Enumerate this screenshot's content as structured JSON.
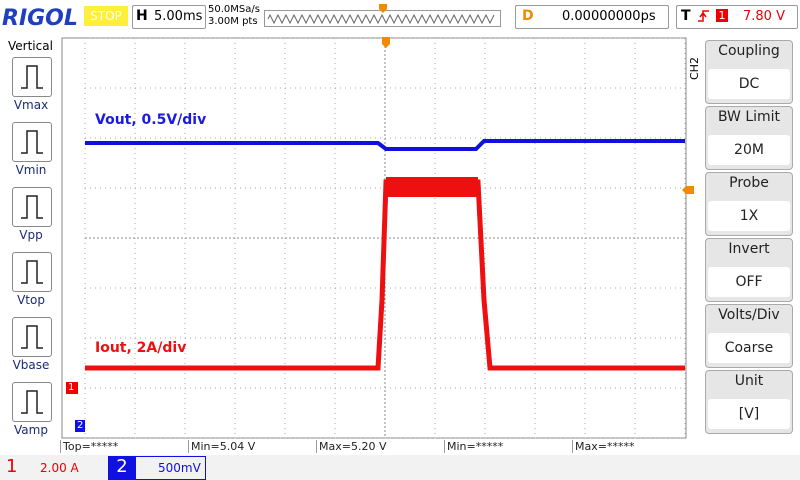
{
  "header": {
    "logo": "RIGOL",
    "status": "STOP",
    "timebase_label": "H",
    "timebase": "5.00ms",
    "sample_rate": "50.0MSa/s",
    "memory_depth": "3.00M pts",
    "delay_label": "D",
    "delay": "0.00000000ps",
    "trigger_label": "T",
    "trigger_source": "1",
    "trigger_level": "7.80 V"
  },
  "sidebar": {
    "title": "Vertical",
    "items": [
      "Vmax",
      "Vmin",
      "Vpp",
      "Vtop",
      "Vbase",
      "Vamp"
    ]
  },
  "screen": {
    "annotations": [
      "Vout, 0.5V/div",
      "Iout, 2A/div"
    ],
    "markers": {
      "ch1": "1",
      "ch2": "2"
    }
  },
  "measurements": [
    "Top=*****",
    "Min=5.04 V",
    "Max=5.20 V",
    "Min=*****",
    "Max=*****"
  ],
  "channels": [
    {
      "number": "1",
      "scale": "2.00 A"
    },
    {
      "number": "2",
      "scale": "500mV"
    }
  ],
  "menu": {
    "channel": "CH2",
    "items": [
      {
        "label": "Coupling",
        "value": "DC"
      },
      {
        "label": "BW Limit",
        "value": "20M"
      },
      {
        "label": "Probe",
        "value": "1X"
      },
      {
        "label": "Invert",
        "value": "OFF"
      },
      {
        "label": "Volts/Div",
        "value": "Coarse"
      },
      {
        "label": "Unit",
        "value": "[V]"
      }
    ]
  }
}
